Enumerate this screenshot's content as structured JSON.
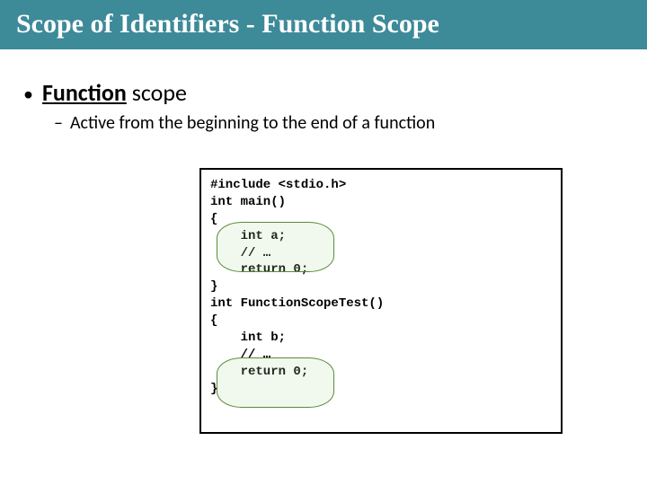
{
  "title": {
    "text": "Scope of Identifiers - Function Scope",
    "bg_color": "#3d8a99",
    "text_color": "#ffffff",
    "font_size": 30
  },
  "bullet": {
    "main_bold": "Function",
    "main_rest": " scope",
    "sub": "Active from the beginning to the end of a function"
  },
  "code": {
    "l1": "#include <stdio.h>",
    "l2": "",
    "l3": "int main()",
    "l4": "{",
    "l5": "    int a;",
    "l6": "    // …",
    "l7": "    return 0;",
    "l8": "}",
    "l9": "",
    "l10": "int FunctionScopeTest()",
    "l11": "{",
    "l12": "    int b;",
    "l13": "    // …",
    "l14": "    return 0;",
    "l15": "}"
  },
  "highlight": {
    "border_color": "#5a8a3a",
    "fill_color": "rgba(180,220,160,0.18)"
  }
}
